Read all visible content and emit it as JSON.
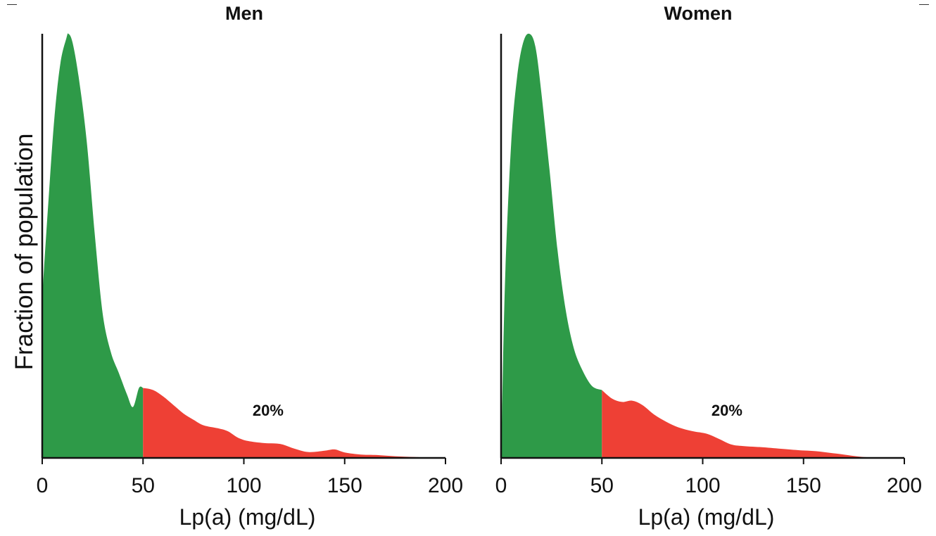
{
  "chart_data": {
    "type": "area",
    "ylabel": "Fraction of population",
    "colors": {
      "below_threshold": "#2e9a48",
      "above_threshold": "#ee4035"
    },
    "panels": [
      {
        "title": "Men",
        "xlabel": "Lp(a) (mg/dL)",
        "xlim": [
          0,
          200
        ],
        "xticks": [
          "0",
          "50",
          "100",
          "150",
          "200"
        ],
        "threshold": 50,
        "annotation": "20%",
        "annotation_x": 112,
        "series": [
          {
            "x": 0,
            "y": 0.38
          },
          {
            "x": 3,
            "y": 0.6
          },
          {
            "x": 6,
            "y": 0.8
          },
          {
            "x": 9,
            "y": 0.93
          },
          {
            "x": 12,
            "y": 0.99
          },
          {
            "x": 13,
            "y": 1.0
          },
          {
            "x": 15,
            "y": 0.98
          },
          {
            "x": 18,
            "y": 0.9
          },
          {
            "x": 22,
            "y": 0.75
          },
          {
            "x": 26,
            "y": 0.53
          },
          {
            "x": 30,
            "y": 0.34
          },
          {
            "x": 34,
            "y": 0.25
          },
          {
            "x": 38,
            "y": 0.2
          },
          {
            "x": 42,
            "y": 0.15
          },
          {
            "x": 45,
            "y": 0.12
          },
          {
            "x": 48,
            "y": 0.165
          },
          {
            "x": 50,
            "y": 0.165
          },
          {
            "x": 55,
            "y": 0.16
          },
          {
            "x": 60,
            "y": 0.145
          },
          {
            "x": 65,
            "y": 0.125
          },
          {
            "x": 70,
            "y": 0.105
          },
          {
            "x": 75,
            "y": 0.09
          },
          {
            "x": 80,
            "y": 0.077
          },
          {
            "x": 87,
            "y": 0.07
          },
          {
            "x": 92,
            "y": 0.063
          },
          {
            "x": 97,
            "y": 0.048
          },
          {
            "x": 102,
            "y": 0.04
          },
          {
            "x": 110,
            "y": 0.035
          },
          {
            "x": 118,
            "y": 0.033
          },
          {
            "x": 125,
            "y": 0.022
          },
          {
            "x": 132,
            "y": 0.014
          },
          {
            "x": 140,
            "y": 0.017
          },
          {
            "x": 145,
            "y": 0.02
          },
          {
            "x": 150,
            "y": 0.013
          },
          {
            "x": 158,
            "y": 0.008
          },
          {
            "x": 165,
            "y": 0.007
          },
          {
            "x": 175,
            "y": 0.004
          },
          {
            "x": 185,
            "y": 0.002
          },
          {
            "x": 195,
            "y": 0.0
          }
        ]
      },
      {
        "title": "Women",
        "xlabel": "Lp(a) (mg/dL)",
        "xlim": [
          0,
          200
        ],
        "xticks": [
          "0",
          "50",
          "100",
          "150",
          "200"
        ],
        "threshold": 50,
        "annotation": "20%",
        "annotation_x": 112,
        "series": [
          {
            "x": 0,
            "y": 0.0
          },
          {
            "x": 2,
            "y": 0.42
          },
          {
            "x": 5,
            "y": 0.74
          },
          {
            "x": 8,
            "y": 0.9
          },
          {
            "x": 11,
            "y": 0.98
          },
          {
            "x": 14,
            "y": 1.0
          },
          {
            "x": 17,
            "y": 0.97
          },
          {
            "x": 20,
            "y": 0.86
          },
          {
            "x": 24,
            "y": 0.68
          },
          {
            "x": 28,
            "y": 0.49
          },
          {
            "x": 32,
            "y": 0.35
          },
          {
            "x": 36,
            "y": 0.26
          },
          {
            "x": 40,
            "y": 0.21
          },
          {
            "x": 45,
            "y": 0.17
          },
          {
            "x": 50,
            "y": 0.16
          },
          {
            "x": 55,
            "y": 0.14
          },
          {
            "x": 60,
            "y": 0.132
          },
          {
            "x": 65,
            "y": 0.135
          },
          {
            "x": 70,
            "y": 0.125
          },
          {
            "x": 76,
            "y": 0.102
          },
          {
            "x": 82,
            "y": 0.085
          },
          {
            "x": 88,
            "y": 0.072
          },
          {
            "x": 95,
            "y": 0.063
          },
          {
            "x": 102,
            "y": 0.057
          },
          {
            "x": 108,
            "y": 0.045
          },
          {
            "x": 114,
            "y": 0.032
          },
          {
            "x": 120,
            "y": 0.028
          },
          {
            "x": 130,
            "y": 0.025
          },
          {
            "x": 140,
            "y": 0.021
          },
          {
            "x": 148,
            "y": 0.018
          },
          {
            "x": 156,
            "y": 0.016
          },
          {
            "x": 163,
            "y": 0.012
          },
          {
            "x": 170,
            "y": 0.008
          },
          {
            "x": 178,
            "y": 0.003
          },
          {
            "x": 185,
            "y": 0.001
          },
          {
            "x": 195,
            "y": 0.0
          }
        ]
      }
    ]
  }
}
